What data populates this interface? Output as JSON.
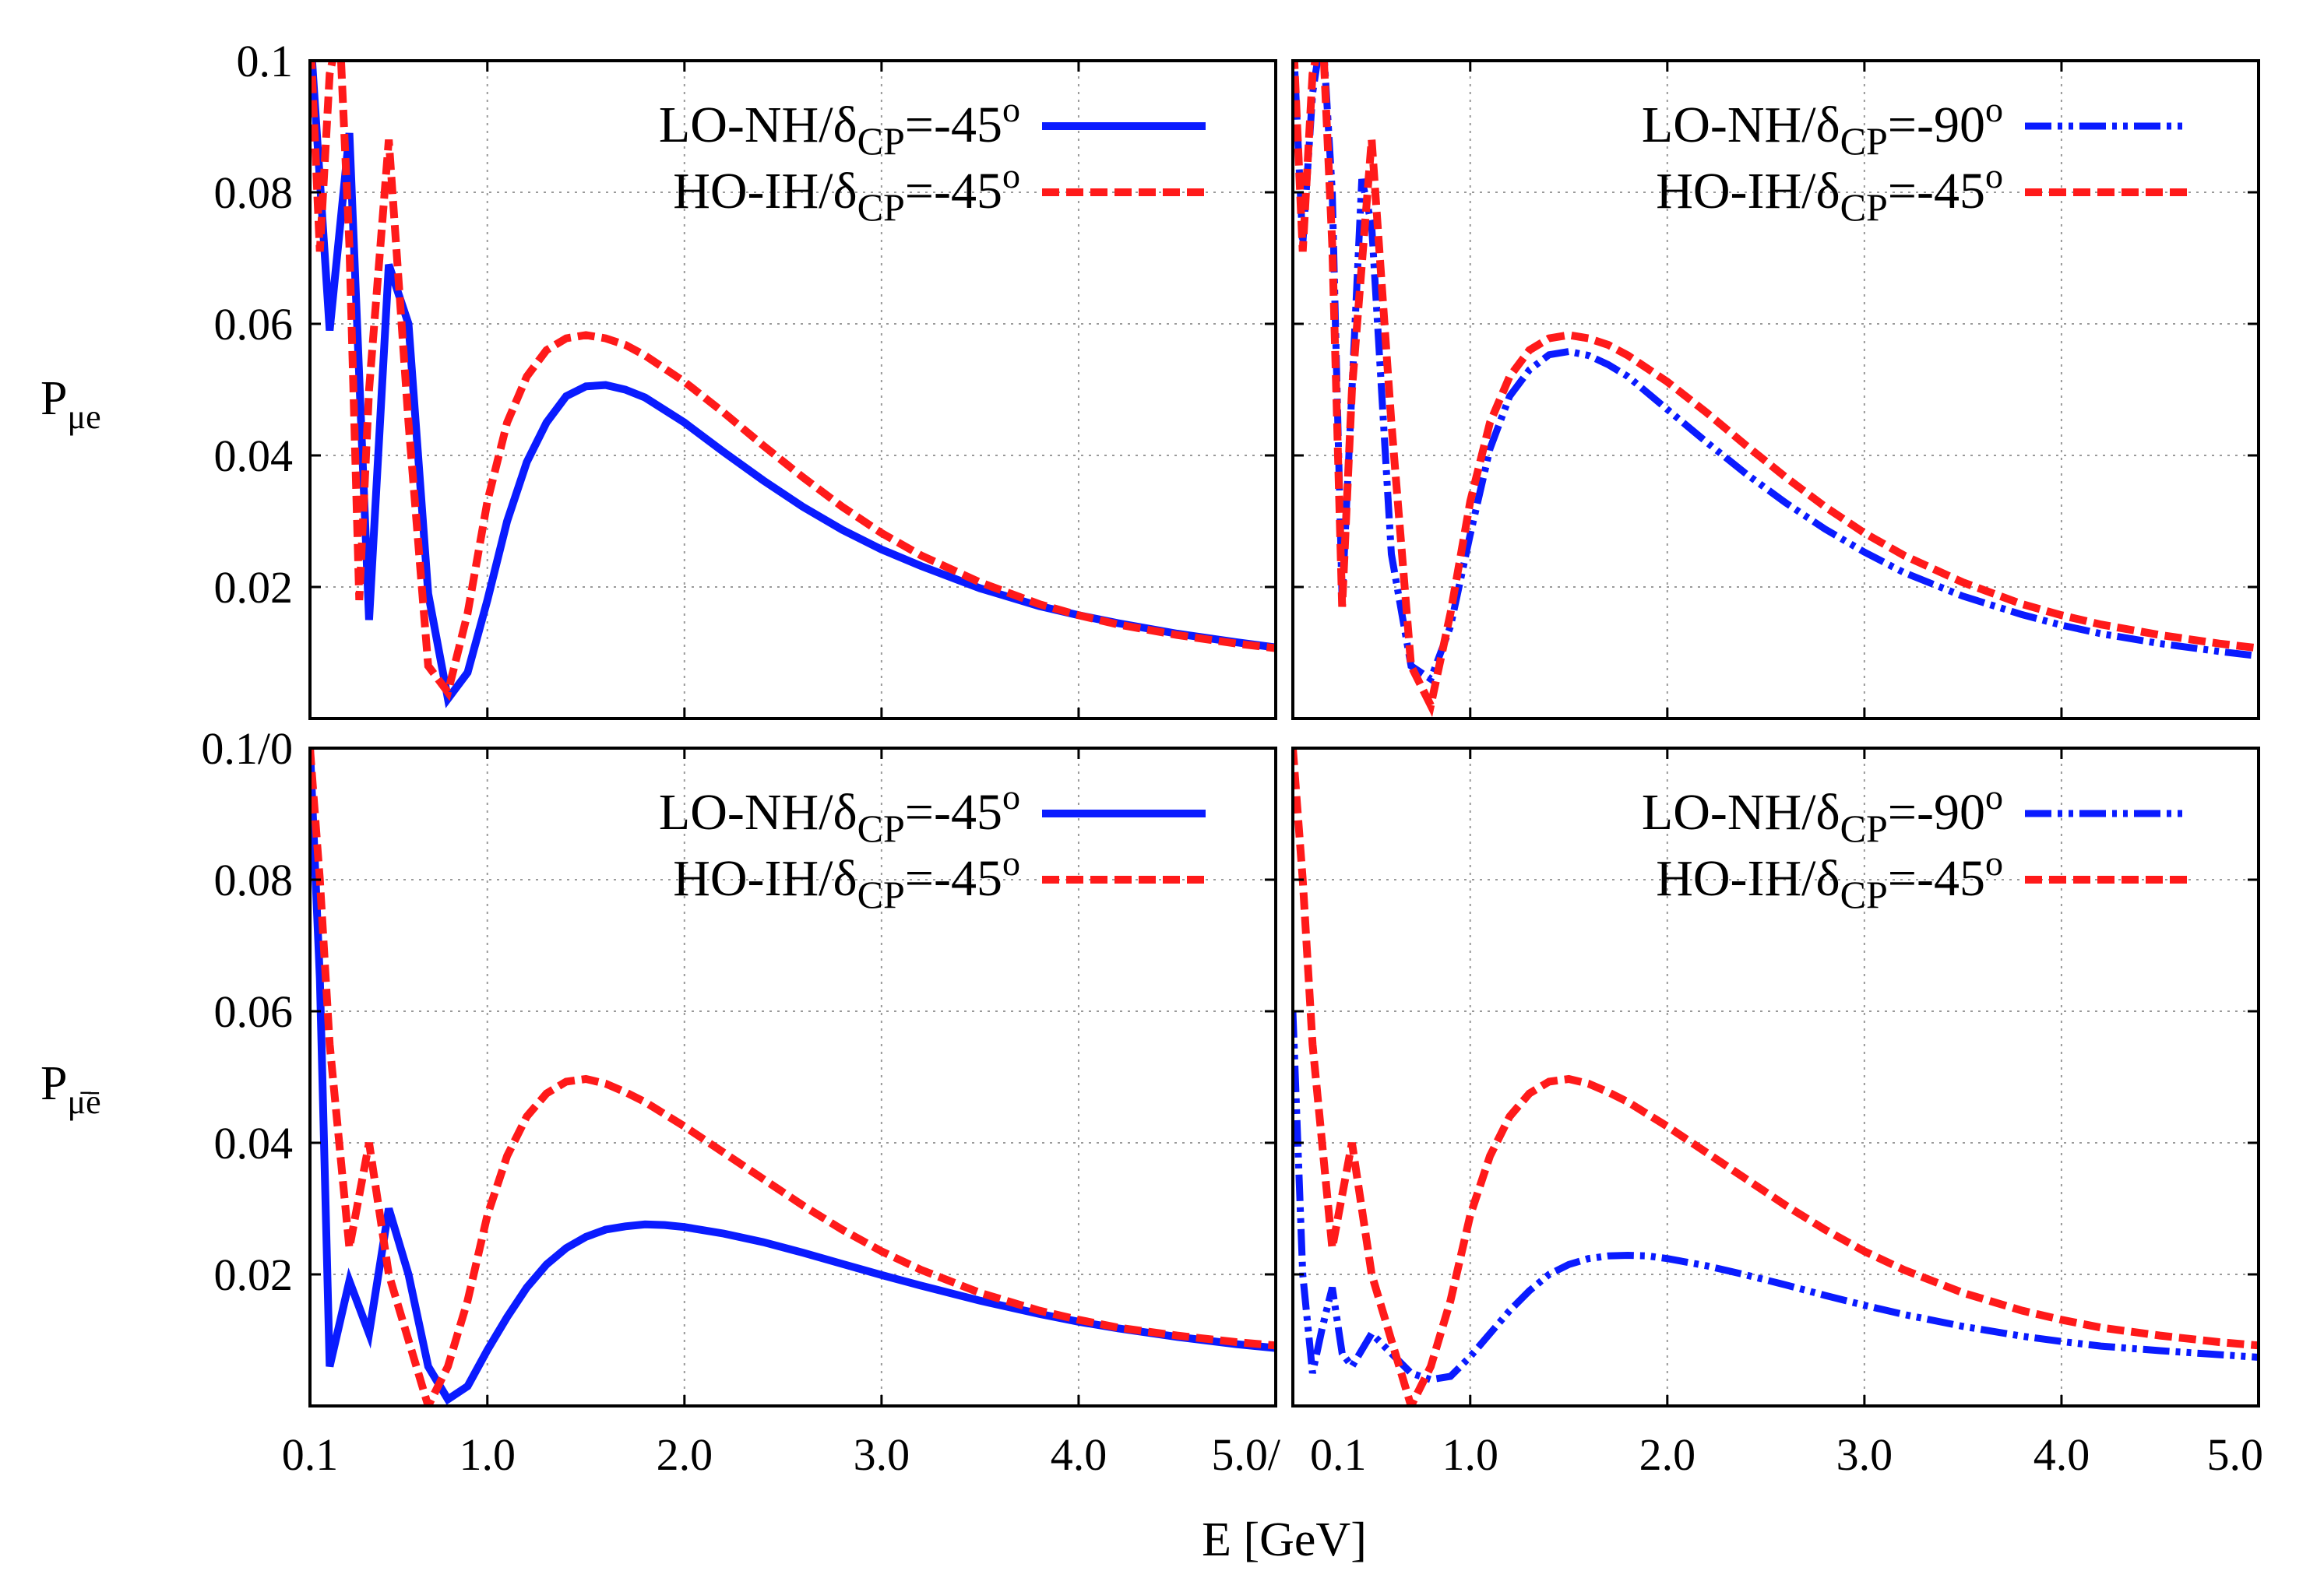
{
  "figure": {
    "x_axis_label": "E [GeV]",
    "y_label_top": {
      "main": "P",
      "sub": "μe"
    },
    "y_label_bottom": {
      "main": "P",
      "sub": "μ̄ē"
    },
    "colors": {
      "blue": "#0a1bff",
      "red": "#ff1a1a"
    }
  },
  "chart_data": [
    {
      "type": "line",
      "panel": "top-left",
      "xlim": [
        0.1,
        5.0
      ],
      "ylim": [
        0.0,
        0.1
      ],
      "xticks": [
        0.1,
        1.0,
        2.0,
        3.0,
        4.0,
        5.0
      ],
      "xtick_labels": [
        "",
        "",
        "",
        "",
        "",
        ""
      ],
      "yticks": [
        0.02,
        0.04,
        0.06,
        0.08,
        0.1
      ],
      "ytick_labels": [
        "0.02",
        "0.04",
        "0.06",
        "0.08",
        "0.1"
      ],
      "grid": true,
      "legend_position": "top-right",
      "series": [
        {
          "name": "LO-NH/δCP=-45o",
          "label_main": "LO-NH/δ",
          "label_sub": "CP",
          "label_tail": "=-45",
          "label_sup": "o",
          "color": "#0a1bff",
          "style": "solid",
          "x": [
            0.1,
            0.2,
            0.3,
            0.4,
            0.5,
            0.6,
            0.7,
            0.8,
            0.9,
            1.0,
            1.1,
            1.2,
            1.3,
            1.4,
            1.5,
            1.6,
            1.7,
            1.8,
            2.0,
            2.2,
            2.4,
            2.6,
            2.8,
            3.0,
            3.2,
            3.5,
            3.8,
            4.0,
            4.2,
            4.5,
            4.8,
            5.0
          ],
          "y": [
            0.105,
            0.059,
            0.089,
            0.015,
            0.069,
            0.06,
            0.019,
            0.003,
            0.007,
            0.018,
            0.03,
            0.039,
            0.045,
            0.049,
            0.0505,
            0.0507,
            0.05,
            0.0488,
            0.045,
            0.0405,
            0.0362,
            0.0322,
            0.0287,
            0.0257,
            0.0232,
            0.0198,
            0.0171,
            0.0157,
            0.0145,
            0.0129,
            0.0116,
            0.0108
          ]
        },
        {
          "name": "HO-IH/δCP=-45o",
          "label_main": "HO-IH/δ",
          "label_sub": "CP",
          "label_tail": "=-45",
          "label_sup": "o",
          "color": "#ff1a1a",
          "style": "dashed",
          "x": [
            0.1,
            0.15,
            0.2,
            0.25,
            0.3,
            0.35,
            0.4,
            0.5,
            0.6,
            0.7,
            0.8,
            0.9,
            1.0,
            1.1,
            1.2,
            1.3,
            1.4,
            1.5,
            1.6,
            1.7,
            1.8,
            2.0,
            2.2,
            2.4,
            2.6,
            2.8,
            3.0,
            3.2,
            3.5,
            3.8,
            4.0,
            4.2,
            4.5,
            4.8,
            5.0
          ],
          "y": [
            0.105,
            0.071,
            0.098,
            0.105,
            0.072,
            0.018,
            0.05,
            0.088,
            0.045,
            0.008,
            0.004,
            0.016,
            0.033,
            0.045,
            0.052,
            0.056,
            0.0578,
            0.0583,
            0.0578,
            0.0568,
            0.0552,
            0.0512,
            0.0465,
            0.0415,
            0.0367,
            0.0322,
            0.0282,
            0.0248,
            0.0207,
            0.0174,
            0.0157,
            0.0143,
            0.0127,
            0.0114,
            0.0107
          ]
        }
      ]
    },
    {
      "type": "line",
      "panel": "top-right",
      "xlim": [
        0.1,
        5.0
      ],
      "ylim": [
        0.0,
        0.1
      ],
      "xticks": [
        0.1,
        1.0,
        2.0,
        3.0,
        4.0,
        5.0
      ],
      "xtick_labels": [
        "",
        "",
        "",
        "",
        "",
        ""
      ],
      "yticks": [
        0.02,
        0.04,
        0.06,
        0.08,
        0.1
      ],
      "ytick_labels": [
        "",
        "",
        "",
        "",
        ""
      ],
      "grid": true,
      "legend_position": "top-right",
      "series": [
        {
          "name": "LO-NH/δCP=-90o",
          "label_main": "LO-NH/δ",
          "label_sub": "CP",
          "label_tail": "=-90",
          "label_sup": "o",
          "color": "#0a1bff",
          "style": "dashdotdot",
          "x": [
            0.1,
            0.15,
            0.2,
            0.25,
            0.3,
            0.35,
            0.4,
            0.45,
            0.5,
            0.6,
            0.7,
            0.8,
            0.9,
            1.0,
            1.1,
            1.2,
            1.3,
            1.4,
            1.5,
            1.6,
            1.7,
            1.8,
            2.0,
            2.2,
            2.4,
            2.6,
            2.8,
            3.0,
            3.2,
            3.5,
            3.8,
            4.0,
            4.2,
            4.5,
            4.8,
            5.0
          ],
          "y": [
            0.105,
            0.072,
            0.095,
            0.105,
            0.08,
            0.018,
            0.05,
            0.082,
            0.075,
            0.025,
            0.008,
            0.006,
            0.014,
            0.028,
            0.041,
            0.049,
            0.053,
            0.0553,
            0.0558,
            0.0552,
            0.0538,
            0.052,
            0.047,
            0.042,
            0.0372,
            0.0328,
            0.0288,
            0.0253,
            0.0222,
            0.0186,
            0.0158,
            0.0142,
            0.0129,
            0.0114,
            0.0102,
            0.0095
          ]
        },
        {
          "name": "HO-IH/δCP=-45o",
          "label_main": "HO-IH/δ",
          "label_sub": "CP",
          "label_tail": "=-45",
          "label_sup": "o",
          "color": "#ff1a1a",
          "style": "dashed",
          "x": [
            0.1,
            0.15,
            0.2,
            0.25,
            0.3,
            0.35,
            0.4,
            0.5,
            0.6,
            0.7,
            0.8,
            0.9,
            1.0,
            1.1,
            1.2,
            1.3,
            1.4,
            1.5,
            1.6,
            1.7,
            1.8,
            2.0,
            2.2,
            2.4,
            2.6,
            2.8,
            3.0,
            3.2,
            3.5,
            3.8,
            4.0,
            4.2,
            4.5,
            4.8,
            5.0
          ],
          "y": [
            0.105,
            0.071,
            0.098,
            0.105,
            0.072,
            0.017,
            0.05,
            0.088,
            0.045,
            0.008,
            0.002,
            0.016,
            0.033,
            0.045,
            0.052,
            0.056,
            0.0578,
            0.0583,
            0.0578,
            0.0568,
            0.0552,
            0.0512,
            0.0465,
            0.0415,
            0.0367,
            0.0322,
            0.0282,
            0.0248,
            0.0207,
            0.0174,
            0.0157,
            0.0143,
            0.0127,
            0.0114,
            0.0107
          ]
        }
      ]
    },
    {
      "type": "line",
      "panel": "bottom-left",
      "xlim": [
        0.1,
        5.0
      ],
      "ylim": [
        0.0,
        0.1
      ],
      "xticks": [
        0.1,
        1.0,
        2.0,
        3.0,
        4.0,
        5.0
      ],
      "xtick_labels": [
        "0.1",
        "1.0",
        "2.0",
        "3.0",
        "4.0",
        "5.0/"
      ],
      "yticks": [
        0.02,
        0.04,
        0.06,
        0.08,
        0.1
      ],
      "ytick_labels": [
        "0.02",
        "0.04",
        "0.06",
        "0.08",
        "0.1/0"
      ],
      "grid": true,
      "legend_position": "top-right",
      "series": [
        {
          "name": "LO-NH/δCP=-45o",
          "label_main": "LO-NH/δ",
          "label_sub": "CP",
          "label_tail": "=-45",
          "label_sup": "o",
          "color": "#0a1bff",
          "style": "solid",
          "x": [
            0.1,
            0.15,
            0.2,
            0.3,
            0.4,
            0.5,
            0.6,
            0.7,
            0.8,
            0.9,
            1.0,
            1.1,
            1.2,
            1.3,
            1.4,
            1.5,
            1.6,
            1.7,
            1.8,
            1.9,
            2.0,
            2.2,
            2.4,
            2.6,
            2.8,
            3.0,
            3.2,
            3.5,
            3.8,
            4.0,
            4.2,
            4.5,
            4.8,
            5.0
          ],
          "y": [
            0.1,
            0.065,
            0.006,
            0.019,
            0.011,
            0.03,
            0.02,
            0.006,
            0.001,
            0.003,
            0.0085,
            0.0135,
            0.018,
            0.0215,
            0.024,
            0.0257,
            0.0268,
            0.0273,
            0.0276,
            0.0275,
            0.0272,
            0.0262,
            0.0249,
            0.0233,
            0.0216,
            0.0199,
            0.0183,
            0.016,
            0.014,
            0.0128,
            0.0118,
            0.0105,
            0.0094,
            0.0088
          ]
        },
        {
          "name": "HO-IH/δCP=-45o",
          "label_main": "HO-IH/δ",
          "label_sub": "CP",
          "label_tail": "=-45",
          "label_sup": "o",
          "color": "#ff1a1a",
          "style": "dashed",
          "x": [
            0.1,
            0.15,
            0.2,
            0.3,
            0.4,
            0.5,
            0.6,
            0.7,
            0.8,
            0.9,
            1.0,
            1.1,
            1.2,
            1.3,
            1.4,
            1.5,
            1.6,
            1.7,
            1.8,
            2.0,
            2.2,
            2.4,
            2.6,
            2.8,
            3.0,
            3.2,
            3.5,
            3.8,
            4.0,
            4.2,
            4.5,
            4.8,
            5.0
          ],
          "y": [
            0.1,
            0.08,
            0.055,
            0.024,
            0.04,
            0.02,
            0.01,
            0.0,
            0.006,
            0.016,
            0.029,
            0.038,
            0.044,
            0.0475,
            0.0493,
            0.0497,
            0.049,
            0.0477,
            0.0462,
            0.0425,
            0.0385,
            0.0345,
            0.0305,
            0.0268,
            0.0235,
            0.0207,
            0.0172,
            0.0145,
            0.0131,
            0.0119,
            0.0107,
            0.0097,
            0.0092
          ]
        }
      ]
    },
    {
      "type": "line",
      "panel": "bottom-right",
      "xlim": [
        0.1,
        5.0
      ],
      "ylim": [
        0.0,
        0.1
      ],
      "xticks": [
        0.1,
        1.0,
        2.0,
        3.0,
        4.0,
        5.0
      ],
      "xtick_labels": [
        "0.1",
        "1.0",
        "2.0",
        "3.0",
        "4.0",
        "5.0"
      ],
      "yticks": [
        0.02,
        0.04,
        0.06,
        0.08,
        0.1
      ],
      "ytick_labels": [
        "",
        "",
        "",
        "",
        ""
      ],
      "grid": true,
      "legend_position": "top-right",
      "series": [
        {
          "name": "LO-NH/δCP=-90o",
          "label_main": "LO-NH/δ",
          "label_sub": "CP",
          "label_tail": "=-90",
          "label_sup": "o",
          "color": "#0a1bff",
          "style": "dashdotdot",
          "x": [
            0.1,
            0.15,
            0.2,
            0.25,
            0.3,
            0.35,
            0.4,
            0.5,
            0.6,
            0.7,
            0.8,
            0.9,
            1.0,
            1.1,
            1.2,
            1.3,
            1.4,
            1.5,
            1.6,
            1.7,
            1.8,
            1.9,
            2.0,
            2.2,
            2.4,
            2.6,
            2.8,
            3.0,
            3.2,
            3.5,
            3.8,
            4.0,
            4.2,
            4.5,
            4.8,
            5.0
          ],
          "y": [
            0.06,
            0.02,
            0.005,
            0.012,
            0.018,
            0.008,
            0.006,
            0.011,
            0.008,
            0.005,
            0.004,
            0.0045,
            0.0075,
            0.011,
            0.0145,
            0.0175,
            0.02,
            0.0215,
            0.0224,
            0.0228,
            0.0229,
            0.0228,
            0.0224,
            0.0213,
            0.0199,
            0.0184,
            0.0168,
            0.0153,
            0.0139,
            0.0121,
            0.0106,
            0.0098,
            0.0091,
            0.0084,
            0.0078,
            0.0074
          ]
        },
        {
          "name": "HO-IH/δCP=-45o",
          "label_main": "HO-IH/δ",
          "label_sub": "CP",
          "label_tail": "=-45",
          "label_sup": "o",
          "color": "#ff1a1a",
          "style": "dashed",
          "x": [
            0.1,
            0.15,
            0.2,
            0.3,
            0.4,
            0.5,
            0.6,
            0.7,
            0.8,
            0.9,
            1.0,
            1.1,
            1.2,
            1.3,
            1.4,
            1.5,
            1.6,
            1.7,
            1.8,
            2.0,
            2.2,
            2.4,
            2.6,
            2.8,
            3.0,
            3.2,
            3.5,
            3.8,
            4.0,
            4.2,
            4.5,
            4.8,
            5.0
          ],
          "y": [
            0.1,
            0.08,
            0.055,
            0.024,
            0.04,
            0.02,
            0.01,
            0.0,
            0.006,
            0.016,
            0.029,
            0.038,
            0.044,
            0.0475,
            0.0493,
            0.0497,
            0.049,
            0.0477,
            0.0462,
            0.0425,
            0.0385,
            0.0345,
            0.0305,
            0.0268,
            0.0235,
            0.0207,
            0.0172,
            0.0145,
            0.0131,
            0.0119,
            0.0107,
            0.0097,
            0.0092
          ]
        }
      ]
    }
  ]
}
